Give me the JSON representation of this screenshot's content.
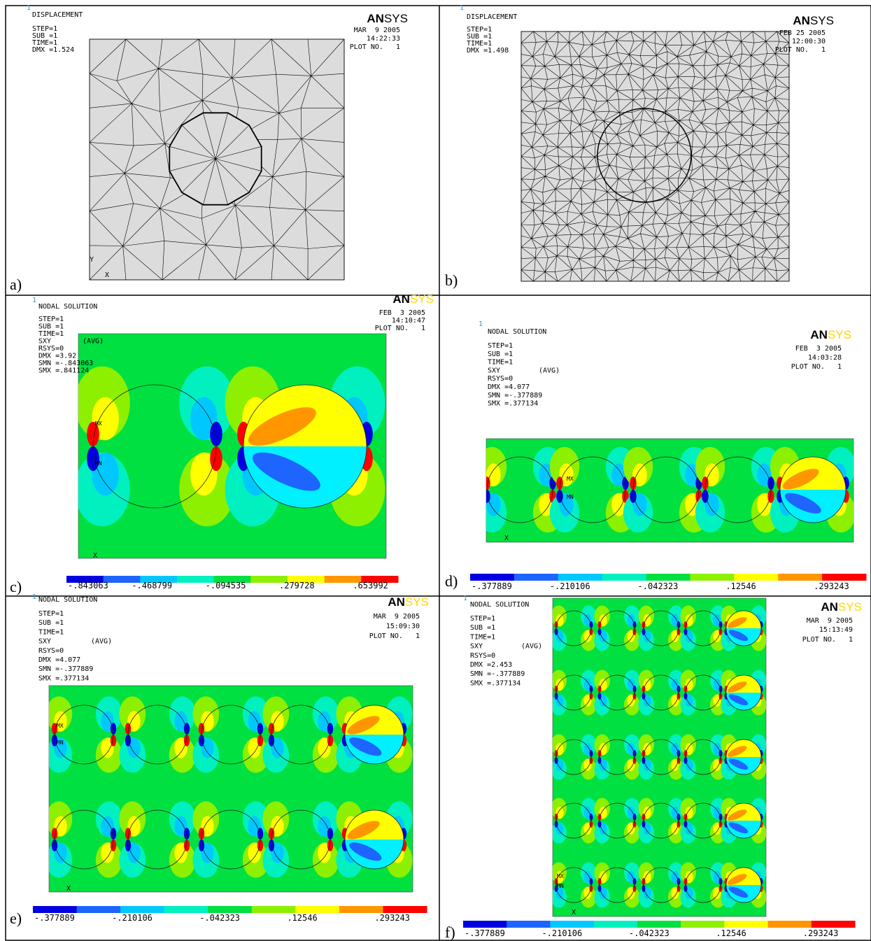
{
  "panels": [
    {
      "label": "a)",
      "window": "1",
      "title": "DISPLACEMENT",
      "info": [
        "STEP=1",
        "SUB =1",
        "TIME=1",
        "DMX =1.524"
      ],
      "logo": [
        "AN",
        "SYS"
      ],
      "date": "MAR  9 2005",
      "time": "14:22:33",
      "plot": "PLOT NO.   1",
      "triad": [
        "Y",
        "X"
      ]
    },
    {
      "label": "b)",
      "window": "1",
      "title": "DISPLACEMENT",
      "info": [
        "STEP=1",
        "SUB =1",
        "TIME=1",
        "DMX =1.498"
      ],
      "logo": [
        "AN",
        "SYS"
      ],
      "date": "FEB 25 2005",
      "time": "12:00:30",
      "plot": "PLOT NO.   1"
    },
    {
      "label": "c)",
      "window": "1",
      "title": "NODAL SOLUTION",
      "info": [
        "STEP=1",
        "SUB =1",
        "TIME=1",
        "SXY",
        "RSYS=0",
        "DMX =3.92",
        "SMN =-.843063",
        "SMX =.841124"
      ],
      "avg": "(AVG)",
      "logo": [
        "AN",
        "SYS"
      ],
      "date": "FEB  3 2005",
      "time": "14:10:47",
      "plot": "PLOT NO.   1",
      "markers": [
        "MX",
        "MN"
      ],
      "triad": [
        "X"
      ],
      "legend": [
        "-.843063",
        "-.468799",
        "-.094535",
        ".279728",
        ".653992"
      ]
    },
    {
      "label": "d)",
      "window": "1",
      "title": "NODAL SOLUTION",
      "info": [
        "STEP=1",
        "SUB =1",
        "TIME=1",
        "SXY",
        "RSYS=0",
        "DMX =4.077",
        "SMN =-.377889",
        "SMX =.377134"
      ],
      "avg": "(AVG)",
      "logo": [
        "AN",
        "SYS"
      ],
      "date": "FEB  3 2005",
      "time": "14:03:28",
      "plot": "PLOT NO.   1",
      "markers": [
        "MX",
        "MN"
      ],
      "triad": [
        "X"
      ],
      "legend": [
        "-.377889",
        "-.210106",
        "-.042323",
        ".12546",
        ".293243"
      ]
    },
    {
      "label": "e)",
      "window": "1",
      "title": "NODAL SOLUTION",
      "info": [
        "STEP=1",
        "SUB =1",
        "TIME=1",
        "SXY",
        "RSYS=0",
        "DMX =4.077",
        "SMN =-.377889",
        "SMX =.377134"
      ],
      "avg": "(AVG)",
      "logo": [
        "AN",
        "SYS"
      ],
      "date": "MAR  9 2005",
      "time": "15:09:30",
      "plot": "PLOT NO.   1",
      "markers": [
        "MX",
        "MN"
      ],
      "triad": [
        "X"
      ],
      "legend": [
        "-.377889",
        "-.210106",
        "-.042323",
        ".12546",
        ".293243"
      ]
    },
    {
      "label": "f)",
      "window": "1",
      "title": "NODAL SOLUTION",
      "info": [
        "STEP=1",
        "SUB =1",
        "TIME=1",
        "SXY",
        "RSYS=0",
        "DMX =2.453",
        "SMN =-.377889",
        "SMX =.377134"
      ],
      "avg": "(AVG)",
      "logo": [
        "AN",
        "SYS"
      ],
      "date": "MAR  9 2005",
      "time": "15:13:49",
      "plot": "PLOT NO.   1",
      "markers": [
        "MX",
        "MN"
      ],
      "triad": [
        "X"
      ],
      "legend": [
        "-.377889",
        "-.210106",
        "-.042323",
        ".12546",
        ".293243"
      ]
    }
  ]
}
